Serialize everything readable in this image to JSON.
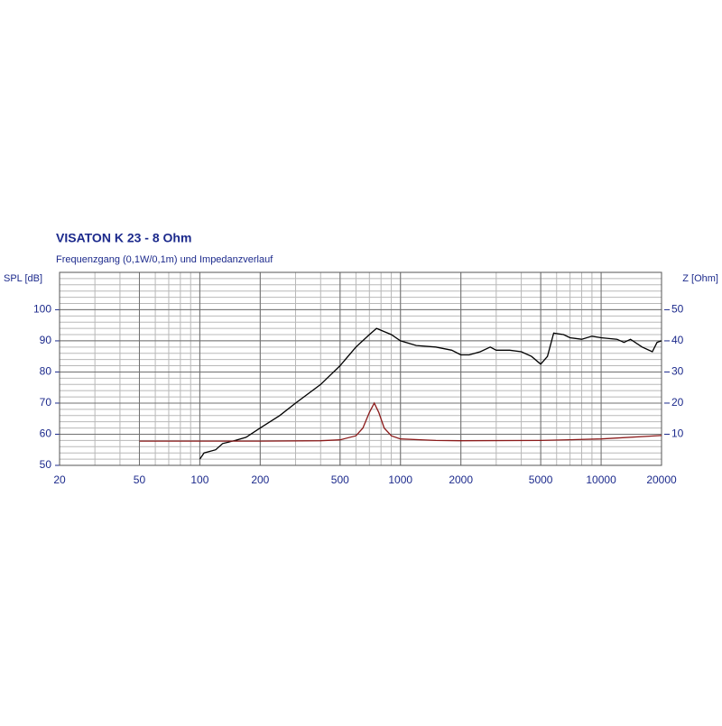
{
  "chart_data": {
    "type": "line",
    "title": "VISATON K 23 - 8 Ohm",
    "subtitle": "Frequenzgang (0,1W/0,1m) und Impedanzverlauf",
    "y_label": "SPL [dB]",
    "y2_label": "Z [Ohm]",
    "xscale": "log",
    "grid": true,
    "xlim": [
      20,
      20000
    ],
    "xticks": [
      20,
      50,
      100,
      200,
      500,
      1000,
      2000,
      5000,
      10000,
      20000
    ],
    "ylim": [
      50,
      112
    ],
    "yticks": [
      50,
      60,
      70,
      80,
      90,
      100
    ],
    "y2lim": [
      0,
      62
    ],
    "y2ticks": [
      10,
      20,
      30,
      40,
      50
    ],
    "series": [
      {
        "name": "SPL",
        "color": "#000000",
        "x": [
          100,
          105,
          120,
          130,
          150,
          170,
          200,
          250,
          300,
          400,
          500,
          600,
          700,
          760,
          900,
          1000,
          1200,
          1500,
          1800,
          2000,
          2200,
          2500,
          2800,
          3000,
          3500,
          4000,
          4500,
          5000,
          5400,
          5800,
          6500,
          7000,
          8000,
          9000,
          10000,
          12000,
          13000,
          14000,
          16000,
          18000,
          19000,
          20000
        ],
        "values": [
          52,
          54,
          55,
          57,
          58,
          59,
          62,
          66,
          70,
          76,
          82,
          88,
          92,
          94,
          92,
          90,
          88.5,
          88,
          87,
          85.5,
          85.5,
          86.5,
          88,
          87,
          87,
          86.5,
          85,
          82.5,
          85,
          92.5,
          92,
          91,
          90.5,
          91.5,
          91,
          90.5,
          89.5,
          90.5,
          88,
          86.5,
          89.5,
          90
        ]
      },
      {
        "name": "Z",
        "color": "#8b1a1a",
        "axis": "y2",
        "x": [
          50,
          100,
          200,
          400,
          500,
          600,
          650,
          700,
          740,
          780,
          830,
          900,
          1000,
          1500,
          2000,
          5000,
          10000,
          20000
        ],
        "values": [
          7.8,
          7.8,
          7.8,
          7.9,
          8.2,
          9.5,
          12,
          17,
          20,
          17,
          12,
          9.5,
          8.5,
          8.0,
          7.9,
          8.0,
          8.5,
          9.6
        ]
      }
    ]
  }
}
